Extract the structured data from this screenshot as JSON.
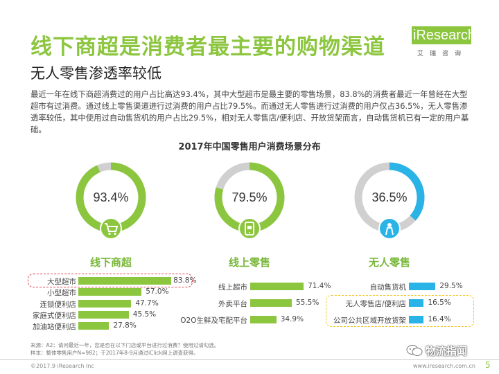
{
  "header": {
    "title": "线下商超是消费者最主要的购物渠道",
    "subtitle": "无人零售渗透率较低"
  },
  "logo": {
    "name": "iResearch",
    "cn": "艾瑞咨询"
  },
  "intro": "最近一年在线下商超消费过的用户占比高达93.4%，其中大型超市是最主要的零售场景，83.8%的消费者最近一年曾经在大型超市有过消费。通过线上零售渠道进行过消费的用户占比79.5%。而通过无人零售进行过消费的用户仅占36.5%，无人零售渗透率较低，其中使用过自动售货机的用户占比29.5%，相对无人零售店/便利店、开放货架而言，自动售货机已有一定的用户基础。",
  "chart_data": {
    "type": "bar",
    "title": "2017年中国零售用户消费场景分布",
    "groups": [
      {
        "name": "线下商超",
        "total_label": "93.4%",
        "total": 93.4,
        "color": "#8cc63f",
        "icon": "shopping-cart-icon",
        "categories": [
          "大型超市",
          "小型超市",
          "连锁便利店",
          "家庭式便利店",
          "加油站便利店"
        ],
        "values": [
          83.8,
          57.0,
          47.7,
          45.5,
          27.8
        ],
        "value_labels": [
          "83.8%",
          "57.0%",
          "47.7%",
          "45.5%",
          "27.8%"
        ]
      },
      {
        "name": "线上零售",
        "total_label": "79.5%",
        "total": 79.5,
        "color": "#8cc63f",
        "icon": "mobile-shopping-icon",
        "categories": [
          "线上超市",
          "外卖平台",
          "O2O生鲜及宅配平台"
        ],
        "values": [
          71.4,
          55.5,
          34.9
        ],
        "value_labels": [
          "71.4%",
          "55.5%",
          "34.9%"
        ]
      },
      {
        "name": "无人零售",
        "total_label": "36.5%",
        "total": 36.5,
        "color": "#2ab3e6",
        "icon": "vending-person-icon",
        "categories": [
          "自动售货机",
          "无人零售店/便利店",
          "公司公共区域开放货架"
        ],
        "values": [
          29.5,
          16.5,
          16.4
        ],
        "value_labels": [
          "29.5%",
          "16.5%",
          "16.4%"
        ]
      }
    ]
  },
  "footnote": {
    "line1": "来源：A2：请问最近一年，您是否在以下门店或平台进行过消费？使用过请勾选。",
    "line2": "样本：整体零售用户N=982；于2017年8-9月通过iClick网上调查获得。"
  },
  "footer": {
    "copyright": "©2017.9 iResearch Inc",
    "site": "www.iresearch.com.cn",
    "page": "5"
  },
  "watermark": "物流指闻"
}
